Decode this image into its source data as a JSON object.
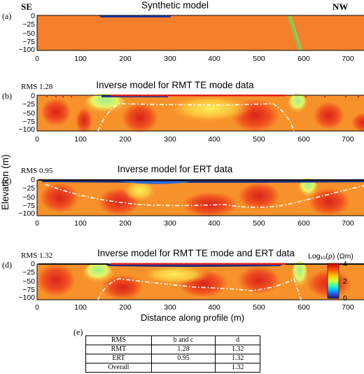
{
  "figure": {
    "y_axis_title": "Elevation (m)",
    "x_axis_title": "Distance along profile (m)",
    "direction_left": "SE",
    "direction_right": "NW",
    "x_ticks": [
      "0",
      "100",
      "200",
      "300",
      "400",
      "500",
      "600",
      "700"
    ],
    "y_ticks": [
      "0",
      "−25",
      "−50",
      "−75",
      "−100"
    ],
    "panels": [
      {
        "label": "(a)",
        "title": "Synthetic model",
        "rms": ""
      },
      {
        "label": "(b)",
        "title": "Inverse model for RMT TE mode data",
        "rms": "RMS 1.28"
      },
      {
        "label": "(c)",
        "title": "Inverse model for ERT data",
        "rms": "RMS 0.95"
      },
      {
        "label": "(d)",
        "title": "Inverse model for RMT TE mode and ERT data",
        "rms": "RMS 1.32"
      }
    ],
    "colorbar": {
      "label": "Log₁₀(ρ) (Ωm)",
      "ticks": [
        "4",
        "2",
        "0"
      ],
      "colors": [
        "#d7191c",
        "#f46d43",
        "#fdae61",
        "#fee08b",
        "#a6d96a",
        "#1a9850",
        "#2c7bb6",
        "#313695"
      ]
    },
    "table": {
      "label": "(e)",
      "header": [
        "RMS",
        "b and c",
        "d"
      ],
      "rows": [
        [
          "RMT",
          "1.28",
          "1.32"
        ],
        [
          "ERT",
          "0.95",
          "1.32"
        ],
        [
          "Overall",
          "",
          "1.32"
        ]
      ]
    }
  },
  "chart_data": [
    {
      "type": "heatmap",
      "title": "Synthetic model",
      "xlim": [
        0,
        770
      ],
      "ylim": [
        -100,
        0
      ],
      "xlabel": "",
      "ylabel": "Elevation (m)"
    },
    {
      "type": "heatmap",
      "title": "Inverse model for RMT TE mode data",
      "xlim": [
        0,
        770
      ],
      "ylim": [
        -100,
        0
      ]
    },
    {
      "type": "heatmap",
      "title": "Inverse model for ERT data",
      "xlim": [
        0,
        770
      ],
      "ylim": [
        -100,
        0
      ]
    },
    {
      "type": "heatmap",
      "title": "Inverse model for RMT TE mode and ERT data",
      "xlim": [
        0,
        770
      ],
      "ylim": [
        -100,
        0
      ],
      "xlabel": "Distance along profile (m)",
      "colorbar_range": [
        0,
        4
      ]
    }
  ]
}
